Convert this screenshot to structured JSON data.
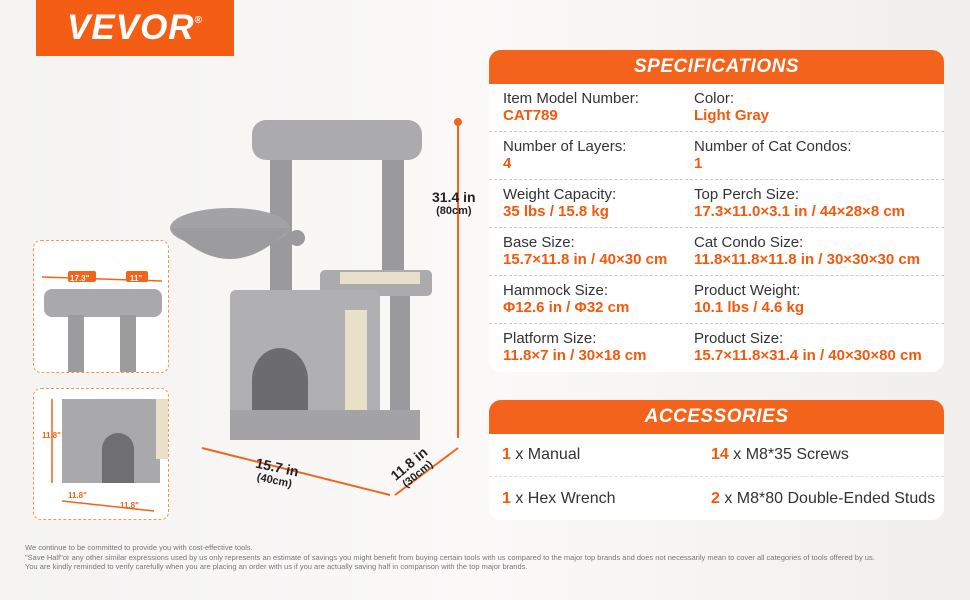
{
  "brand": {
    "logo": "VEVOR",
    "registered": "®"
  },
  "dimensions": {
    "height": {
      "in": "31.4 in",
      "cm": "(80cm)"
    },
    "length": {
      "in": "15.7 in",
      "cm": "(40cm)"
    },
    "width": {
      "in": "11.8 in",
      "cm": "(30cm)"
    }
  },
  "thumbnails": {
    "perch": {
      "length": "17.3\"",
      "width": "11\""
    },
    "condo": {
      "height": "11.8\"",
      "depth": "11.8\"",
      "width": "11.8\""
    }
  },
  "specifications": {
    "title": "SPECIFICATIONS",
    "rows": [
      [
        {
          "label": "Item Model Number:",
          "value": "CAT789"
        },
        {
          "label": "Color:",
          "value": "Light Gray"
        }
      ],
      [
        {
          "label": "Number of Layers:",
          "value": "4"
        },
        {
          "label": "Number of Cat Condos:",
          "value": "1"
        }
      ],
      [
        {
          "label": "Weight Capacity:",
          "value": "35 lbs / 15.8 kg"
        },
        {
          "label": "Top Perch Size:",
          "value": "17.3×11.0×3.1 in / 44×28×8 cm"
        }
      ],
      [
        {
          "label": "Base Size:",
          "value": "15.7×11.8 in / 40×30 cm"
        },
        {
          "label": "Cat Condo Size:",
          "value": "11.8×11.8×11.8 in / 30×30×30 cm"
        }
      ],
      [
        {
          "label": "Hammock Size:",
          "value": "Φ12.6 in / Φ32 cm"
        },
        {
          "label": "Product Weight:",
          "value": "10.1 lbs / 4.6 kg"
        }
      ],
      [
        {
          "label": "Platform Size:",
          "value": "11.8×7 in / 30×18 cm"
        },
        {
          "label": "Product Size:",
          "value": "15.7×11.8×31.4 in / 40×30×80 cm"
        }
      ]
    ]
  },
  "accessories": {
    "title": "ACCESSORIES",
    "rows": [
      [
        {
          "qty": "1",
          "text": " x Manual"
        },
        {
          "qty": "14",
          "text": " x M8*35 Screws"
        }
      ],
      [
        {
          "qty": "1",
          "text": " x Hex Wrench"
        },
        {
          "qty": "2",
          "text": " x M8*80 Double-Ended Studs"
        }
      ]
    ]
  },
  "footer": [
    "We continue to be committed to provide you with cost-effective tools.",
    "\"Save Half\"or any other similar expressions used by us only represents an estimate of savings you might benefit from buying certain tools with us compared to the major top brands and does not necessarily mean to cover all categories of tools offered by us.",
    "You are kindly reminded to verify carefully when you are placing an order with us if you are actually saving half in comparison with the top major brands."
  ],
  "colors": {
    "accent": "#f4631b",
    "product": "#a9a8ab"
  }
}
